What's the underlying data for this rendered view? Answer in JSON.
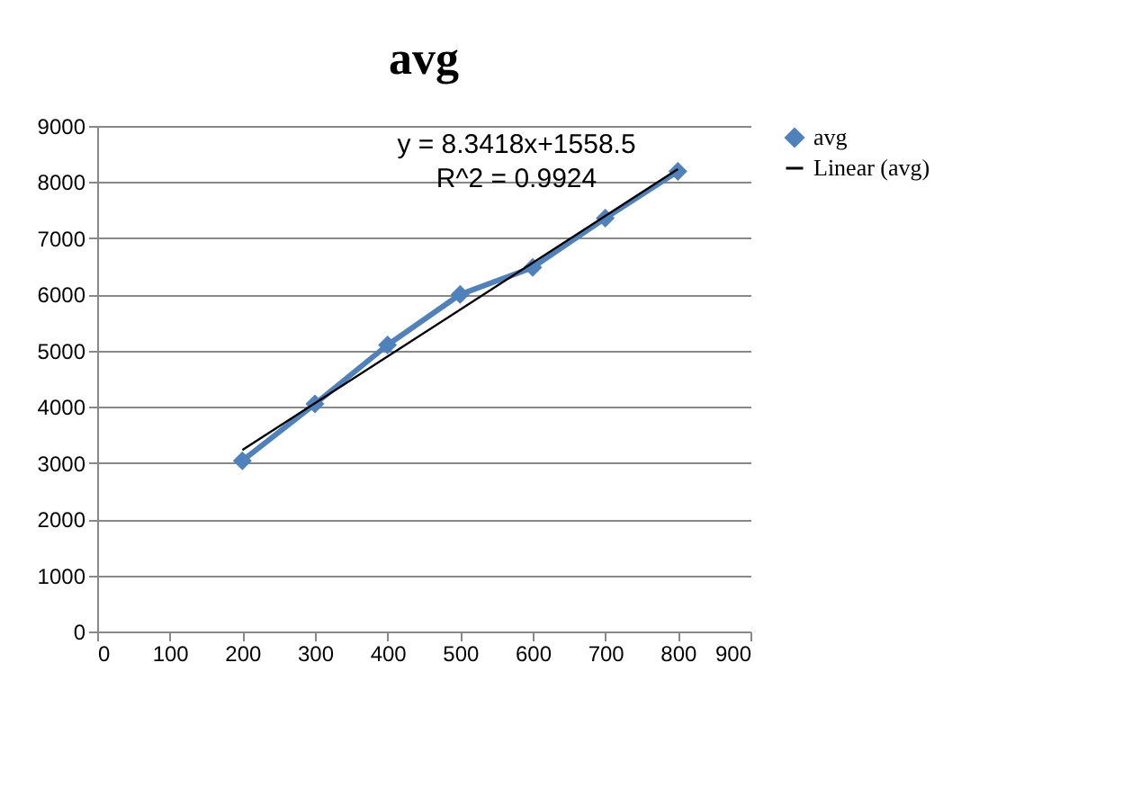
{
  "chart_data": {
    "type": "line",
    "title": "avg",
    "x": [
      200,
      300,
      400,
      500,
      600,
      700,
      800
    ],
    "series": [
      {
        "name": "avg",
        "color": "#4f81bd",
        "values": [
          3040,
          4050,
          5100,
          6000,
          6480,
          7360,
          8190
        ],
        "marker": "diamond"
      },
      {
        "name": "Linear (avg)",
        "type": "line",
        "color": "#000000",
        "x": [
          200,
          800
        ],
        "values": [
          3230,
          8230
        ],
        "marker": "none"
      }
    ],
    "xlim": [
      0,
      900
    ],
    "xticks": [
      0,
      100,
      200,
      300,
      400,
      500,
      600,
      700,
      800,
      900
    ],
    "ylim": [
      0,
      9000
    ],
    "yticks": [
      0,
      1000,
      2000,
      3000,
      4000,
      5000,
      6000,
      7000,
      8000,
      9000
    ],
    "annotations": [
      "y = 8.3418x+1558.5",
      "R^2 = 0.9924"
    ],
    "grid": "y",
    "legend": "right"
  }
}
